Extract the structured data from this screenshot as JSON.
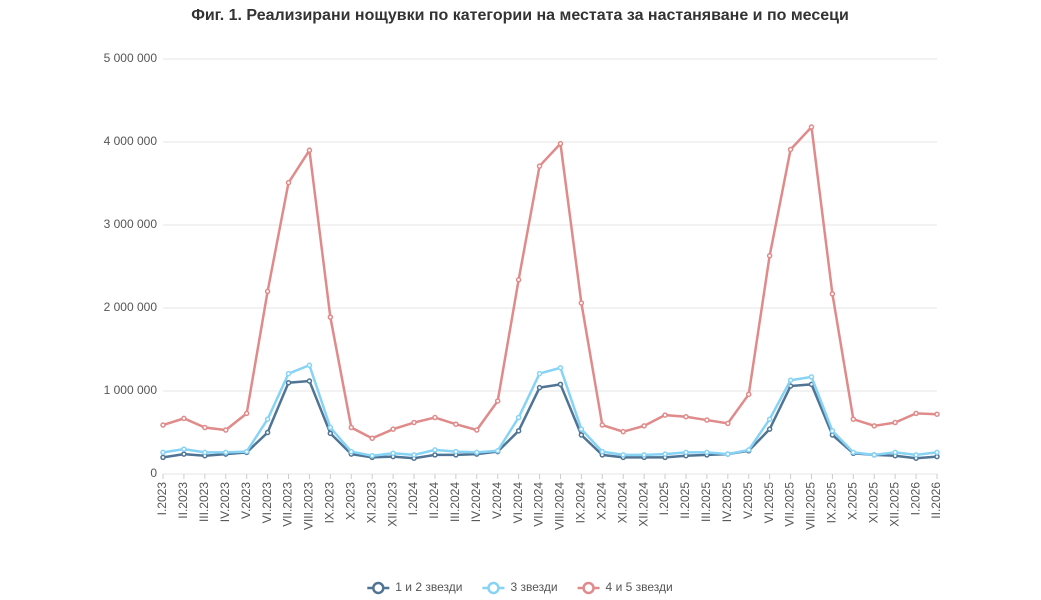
{
  "chart_data": {
    "type": "line",
    "title": "Фиг. 1. Реализирани нощувки по категории на местата за настаняване и по месеци",
    "categories": [
      "I.2023",
      "II.2023",
      "III.2023",
      "IV.2023",
      "V.2023",
      "VI.2023",
      "VII.2023",
      "VIII.2023",
      "IX.2023",
      "X.2023",
      "XI.2023",
      "XII.2023",
      "I.2024",
      "II.2024",
      "III.2024",
      "IV.2024",
      "V.2024",
      "VI.2024",
      "VII.2024",
      "VIII.2024",
      "IX.2024",
      "X.2024",
      "XI.2024",
      "XII.2024",
      "I.2025",
      "II.2025",
      "III.2025",
      "IV.2025",
      "V.2025",
      "VI.2025",
      "VII.2025",
      "VIII.2025",
      "IX.2025",
      "X.2025",
      "XI.2025",
      "XII.2025",
      "I.2026",
      "II.2026"
    ],
    "series": [
      {
        "name": "1 и 2 звезди",
        "color": "#4f7494",
        "values": [
          200000,
          240000,
          220000,
          240000,
          260000,
          500000,
          1100000,
          1120000,
          490000,
          240000,
          200000,
          210000,
          190000,
          230000,
          230000,
          240000,
          270000,
          520000,
          1040000,
          1080000,
          470000,
          230000,
          200000,
          200000,
          200000,
          220000,
          230000,
          240000,
          280000,
          540000,
          1060000,
          1080000,
          470000,
          250000,
          230000,
          220000,
          190000,
          210000
        ]
      },
      {
        "name": "3 звезди",
        "color": "#87d3f5",
        "values": [
          260000,
          300000,
          260000,
          260000,
          270000,
          660000,
          1210000,
          1310000,
          560000,
          270000,
          220000,
          250000,
          230000,
          290000,
          270000,
          260000,
          280000,
          680000,
          1210000,
          1280000,
          540000,
          270000,
          230000,
          230000,
          240000,
          260000,
          260000,
          240000,
          290000,
          660000,
          1130000,
          1170000,
          520000,
          260000,
          230000,
          260000,
          230000,
          260000
        ]
      },
      {
        "name": "4 и 5 звезди",
        "color": "#e08a8a",
        "values": [
          590000,
          670000,
          560000,
          530000,
          730000,
          2200000,
          3510000,
          3900000,
          1890000,
          560000,
          430000,
          540000,
          620000,
          680000,
          600000,
          530000,
          880000,
          2340000,
          3710000,
          3980000,
          2060000,
          590000,
          510000,
          580000,
          710000,
          690000,
          650000,
          610000,
          960000,
          2630000,
          3910000,
          4180000,
          2170000,
          660000,
          580000,
          620000,
          730000,
          720000
        ]
      }
    ],
    "ylim": [
      0,
      5000000
    ],
    "yticks": [
      0,
      {
        "value": 1000000,
        "label": "1 000 000"
      },
      {
        "value": 2000000,
        "label": "2 000 000"
      },
      {
        "value": 3000000,
        "label": "3 000 000"
      },
      {
        "value": 4000000,
        "label": "4 000 000"
      },
      {
        "value": 5000000,
        "label": "5 000 000"
      }
    ],
    "grid": true
  }
}
